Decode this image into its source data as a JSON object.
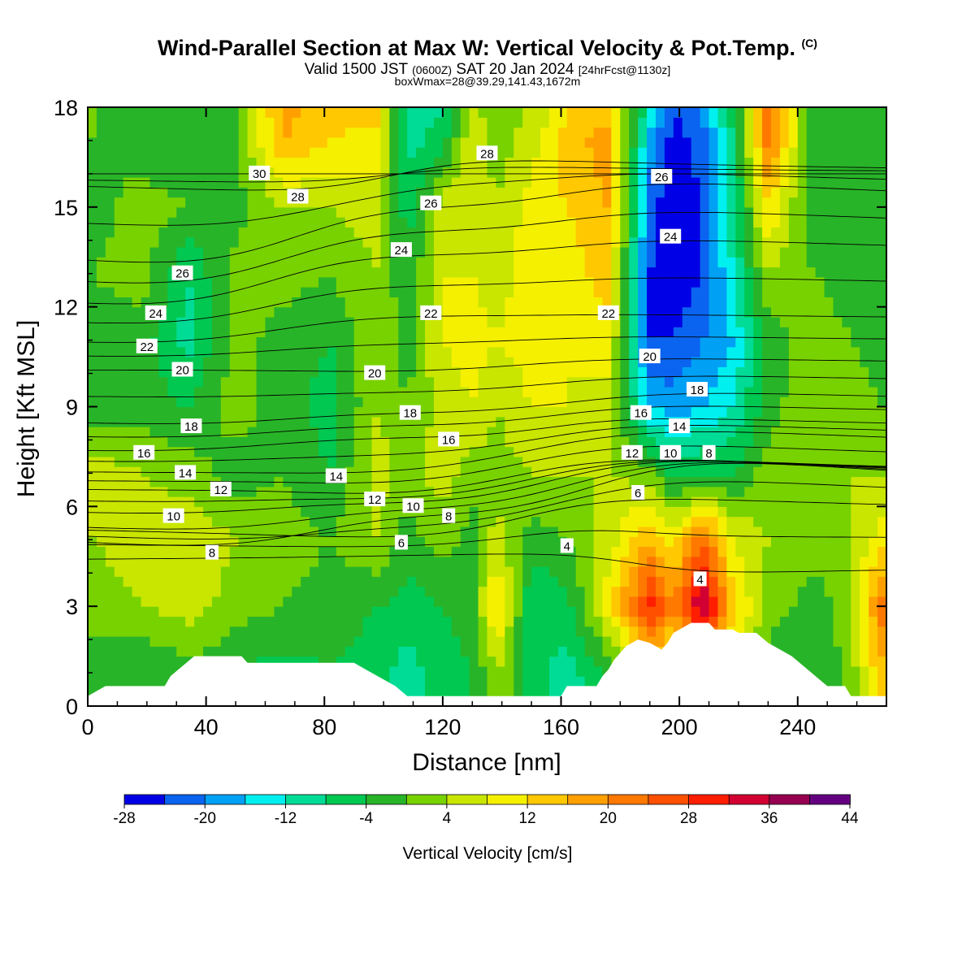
{
  "header": {
    "title": "Wind-Parallel Section at Max W: Vertical Velocity & Pot.Temp.",
    "copyright": "(C)",
    "valid_prefix": "Valid 1500 JST",
    "valid_utc": "(0600Z)",
    "valid_date": "SAT 20 Jan 2024",
    "forecast": "[24hrFcst@1130z]",
    "box_info": "boxWmax=28@39.29,141.43,1672m"
  },
  "chart_data": {
    "type": "heatmap",
    "xlabel": "Distance [nm]",
    "ylabel": "Height [Kft MSL]",
    "xlim": [
      0,
      270
    ],
    "ylim": [
      0,
      18
    ],
    "x_ticks": [
      0,
      40,
      80,
      120,
      160,
      200,
      240
    ],
    "y_ticks": [
      0,
      3,
      6,
      9,
      12,
      15,
      18
    ],
    "colorbar": {
      "title": "Vertical Velocity [cm/s]",
      "levels": [
        -28,
        -24,
        -20,
        -16,
        -12,
        -8,
        -4,
        0,
        4,
        8,
        12,
        16,
        20,
        24,
        28,
        32,
        36,
        40,
        44
      ],
      "tick_labels": [
        "-28",
        "-20",
        "-12",
        "-4",
        "4",
        "12",
        "20",
        "28",
        "36",
        "44"
      ],
      "colors": [
        "#0000e6",
        "#0a64f0",
        "#00a0f5",
        "#00f0f0",
        "#00dc96",
        "#00c850",
        "#28b428",
        "#78d200",
        "#c8e600",
        "#f5f000",
        "#ffc800",
        "#ffa000",
        "#ff7800",
        "#ff5000",
        "#ff1e00",
        "#d20032",
        "#960050",
        "#640080"
      ]
    },
    "w_columns": [
      {
        "x": 2,
        "values": [
          -2,
          2,
          4,
          6,
          -2,
          -2,
          0,
          -2,
          0,
          0
        ]
      },
      {
        "x": 18,
        "values": [
          -4,
          4,
          6,
          4,
          -2,
          -2,
          2,
          2,
          -2,
          -2
        ]
      },
      {
        "x": 34,
        "values": [
          -2,
          6,
          8,
          2,
          -4,
          -10,
          -8,
          0,
          -4,
          -4
        ]
      },
      {
        "x": 50,
        "values": [
          -4,
          2,
          4,
          -2,
          2,
          2,
          2,
          -2,
          0,
          -2
        ]
      },
      {
        "x": 66,
        "values": [
          -6,
          0,
          2,
          0,
          -2,
          -2,
          2,
          4,
          16,
          18
        ]
      },
      {
        "x": 82,
        "values": [
          -4,
          -2,
          0,
          -4,
          -6,
          -4,
          0,
          4,
          12,
          14
        ]
      },
      {
        "x": 98,
        "values": [
          -6,
          -4,
          4,
          6,
          4,
          4,
          4,
          6,
          10,
          14
        ]
      },
      {
        "x": 108,
        "values": [
          -10,
          -6,
          -2,
          2,
          0,
          -2,
          -4,
          -6,
          -10,
          -12
        ]
      },
      {
        "x": 120,
        "values": [
          -6,
          -4,
          2,
          6,
          6,
          8,
          8,
          6,
          -6,
          -8
        ]
      },
      {
        "x": 130,
        "values": [
          -4,
          -2,
          -2,
          2,
          8,
          10,
          8,
          8,
          8,
          4
        ]
      },
      {
        "x": 138,
        "values": [
          4,
          14,
          6,
          2,
          4,
          8,
          6,
          4,
          2,
          2
        ]
      },
      {
        "x": 150,
        "values": [
          -6,
          -8,
          -2,
          4,
          8,
          10,
          10,
          10,
          6,
          4
        ]
      },
      {
        "x": 162,
        "values": [
          -10,
          -6,
          0,
          4,
          8,
          8,
          10,
          12,
          14,
          12
        ]
      },
      {
        "x": 176,
        "values": [
          -4,
          10,
          6,
          4,
          6,
          10,
          14,
          16,
          18,
          14
        ]
      },
      {
        "x": 190,
        "values": [
          10,
          30,
          16,
          2,
          -16,
          -24,
          -24,
          -22,
          -18,
          -12
        ]
      },
      {
        "x": 198,
        "values": [
          4,
          20,
          10,
          -6,
          -18,
          -24,
          -28,
          -28,
          -26,
          -24
        ]
      },
      {
        "x": 208,
        "values": [
          12,
          38,
          24,
          -4,
          -16,
          -20,
          -24,
          -24,
          -22,
          -18
        ]
      },
      {
        "x": 218,
        "values": [
          6,
          14,
          8,
          -4,
          -12,
          -16,
          -12,
          -10,
          -8,
          -6
        ]
      },
      {
        "x": 230,
        "values": [
          -2,
          2,
          4,
          2,
          -2,
          -2,
          4,
          12,
          22,
          24
        ]
      },
      {
        "x": 246,
        "values": [
          -4,
          -2,
          2,
          4,
          4,
          2,
          0,
          -4,
          -4,
          -4
        ]
      },
      {
        "x": 258,
        "values": [
          2,
          2,
          4,
          4,
          2,
          0,
          -2,
          -2,
          -4,
          -4
        ]
      },
      {
        "x": 268,
        "values": [
          14,
          22,
          10,
          4,
          0,
          -2,
          -4,
          -4,
          -4,
          -4
        ]
      }
    ],
    "w_rows_height_kft": [
      1,
      3,
      5,
      7,
      9,
      11,
      13,
      15,
      17,
      18
    ],
    "terrain": [
      {
        "x": 0,
        "h": 0.3
      },
      {
        "x": 6,
        "h": 0.6
      },
      {
        "x": 26,
        "h": 0.6
      },
      {
        "x": 28,
        "h": 0.9
      },
      {
        "x": 32,
        "h": 1.2
      },
      {
        "x": 36,
        "h": 1.5
      },
      {
        "x": 52,
        "h": 1.5
      },
      {
        "x": 54,
        "h": 1.3
      },
      {
        "x": 90,
        "h": 1.3
      },
      {
        "x": 94,
        "h": 1.1
      },
      {
        "x": 100,
        "h": 0.8
      },
      {
        "x": 104,
        "h": 0.6
      },
      {
        "x": 108,
        "h": 0.3
      },
      {
        "x": 160,
        "h": 0.3
      },
      {
        "x": 162,
        "h": 0.6
      },
      {
        "x": 172,
        "h": 0.6
      },
      {
        "x": 174,
        "h": 0.9
      },
      {
        "x": 176,
        "h": 1.1
      },
      {
        "x": 178,
        "h": 1.4
      },
      {
        "x": 182,
        "h": 1.8
      },
      {
        "x": 186,
        "h": 2.0
      },
      {
        "x": 190,
        "h": 1.9
      },
      {
        "x": 194,
        "h": 1.7
      },
      {
        "x": 196,
        "h": 1.9
      },
      {
        "x": 198,
        "h": 2.2
      },
      {
        "x": 202,
        "h": 2.4
      },
      {
        "x": 204,
        "h": 2.5
      },
      {
        "x": 210,
        "h": 2.5
      },
      {
        "x": 212,
        "h": 2.3
      },
      {
        "x": 218,
        "h": 2.3
      },
      {
        "x": 220,
        "h": 2.2
      },
      {
        "x": 226,
        "h": 2.2
      },
      {
        "x": 230,
        "h": 1.9
      },
      {
        "x": 234,
        "h": 1.7
      },
      {
        "x": 238,
        "h": 1.5
      },
      {
        "x": 242,
        "h": 1.2
      },
      {
        "x": 246,
        "h": 0.9
      },
      {
        "x": 250,
        "h": 0.6
      },
      {
        "x": 256,
        "h": 0.6
      },
      {
        "x": 258,
        "h": 0.3
      },
      {
        "x": 270,
        "h": 0.3
      }
    ],
    "theta_labels": [
      {
        "text": "30",
        "x": 58,
        "y": 16.0
      },
      {
        "text": "28",
        "x": 71,
        "y": 15.3
      },
      {
        "text": "28",
        "x": 135,
        "y": 16.6
      },
      {
        "text": "26",
        "x": 116,
        "y": 15.1
      },
      {
        "text": "26",
        "x": 194,
        "y": 15.9
      },
      {
        "text": "24",
        "x": 106,
        "y": 13.7
      },
      {
        "text": "24",
        "x": 197,
        "y": 14.1
      },
      {
        "text": "26",
        "x": 32,
        "y": 13.0
      },
      {
        "text": "24",
        "x": 23,
        "y": 11.8
      },
      {
        "text": "22",
        "x": 116,
        "y": 11.8
      },
      {
        "text": "22",
        "x": 176,
        "y": 11.8
      },
      {
        "text": "22",
        "x": 20,
        "y": 10.8
      },
      {
        "text": "20",
        "x": 190,
        "y": 10.5
      },
      {
        "text": "20",
        "x": 32,
        "y": 10.1
      },
      {
        "text": "20",
        "x": 97,
        "y": 10.0
      },
      {
        "text": "18",
        "x": 206,
        "y": 9.5
      },
      {
        "text": "18",
        "x": 109,
        "y": 8.8
      },
      {
        "text": "18",
        "x": 35,
        "y": 8.4
      },
      {
        "text": "16",
        "x": 187,
        "y": 8.8
      },
      {
        "text": "16",
        "x": 122,
        "y": 8.0
      },
      {
        "text": "14",
        "x": 200,
        "y": 8.4
      },
      {
        "text": "16",
        "x": 19,
        "y": 7.6
      },
      {
        "text": "12",
        "x": 184,
        "y": 7.6
      },
      {
        "text": "10",
        "x": 197,
        "y": 7.6
      },
      {
        "text": "8",
        "x": 210,
        "y": 7.6
      },
      {
        "text": "14",
        "x": 33,
        "y": 7.0
      },
      {
        "text": "14",
        "x": 84,
        "y": 6.9
      },
      {
        "text": "12",
        "x": 45,
        "y": 6.5
      },
      {
        "text": "12",
        "x": 97,
        "y": 6.2
      },
      {
        "text": "10",
        "x": 110,
        "y": 6.0
      },
      {
        "text": "6",
        "x": 186,
        "y": 6.4
      },
      {
        "text": "10",
        "x": 29,
        "y": 5.7
      },
      {
        "text": "8",
        "x": 122,
        "y": 5.7
      },
      {
        "text": "6",
        "x": 106,
        "y": 4.9
      },
      {
        "text": "4",
        "x": 162,
        "y": 4.8
      },
      {
        "text": "8",
        "x": 42,
        "y": 4.6
      },
      {
        "text": "4",
        "x": 207,
        "y": 3.8
      }
    ]
  }
}
